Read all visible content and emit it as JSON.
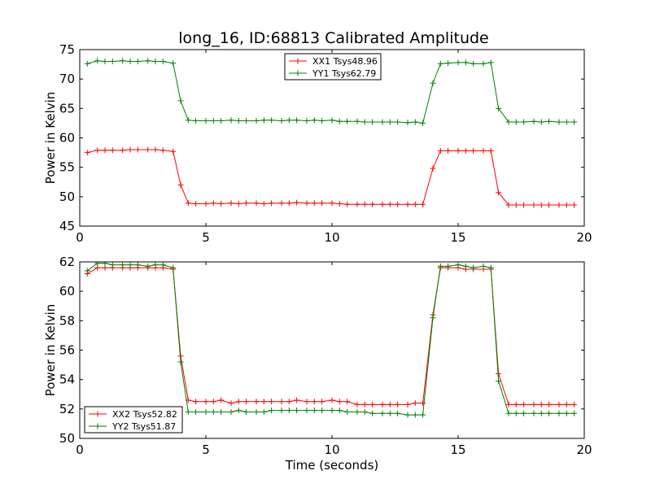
{
  "figure": {
    "title": "long_16, ID:68813 Calibrated Amplitude"
  },
  "chart_data": [
    {
      "type": "line",
      "title": "long_16, ID:68813 Calibrated Amplitude",
      "xlabel": "",
      "ylabel": "Power in Kelvin",
      "xlim": [
        0,
        20
      ],
      "ylim": [
        45,
        75
      ],
      "xticks": [
        0,
        5,
        10,
        15,
        20
      ],
      "yticks": [
        45,
        50,
        55,
        60,
        65,
        70,
        75
      ],
      "grid": false,
      "legend_position": "upper-center",
      "x": [
        0.3,
        0.7,
        1.0,
        1.3,
        1.7,
        2.0,
        2.3,
        2.7,
        3.0,
        3.3,
        3.7,
        4.0,
        4.3,
        4.6,
        5.0,
        5.3,
        5.6,
        6.0,
        6.3,
        6.6,
        7.0,
        7.3,
        7.6,
        8.0,
        8.3,
        8.6,
        9.0,
        9.3,
        9.6,
        10.0,
        10.3,
        10.6,
        11.0,
        11.3,
        11.6,
        12.0,
        12.3,
        12.6,
        13.0,
        13.3,
        13.6,
        14.0,
        14.3,
        14.6,
        15.0,
        15.3,
        15.6,
        16.0,
        16.3,
        16.6,
        17.0,
        17.3,
        17.6,
        18.0,
        18.3,
        18.6,
        19.0,
        19.3,
        19.6
      ],
      "series": [
        {
          "name": "XX1 Tsys48.96",
          "color": "#ff0000",
          "values": [
            57.5,
            57.9,
            57.9,
            57.9,
            57.9,
            58.0,
            58.0,
            58.0,
            58.0,
            57.9,
            57.7,
            52.0,
            48.9,
            48.8,
            48.8,
            48.9,
            48.8,
            48.9,
            48.8,
            48.9,
            48.9,
            48.8,
            48.9,
            48.9,
            48.9,
            49.0,
            48.9,
            48.9,
            48.9,
            48.9,
            48.8,
            48.7,
            48.7,
            48.7,
            48.7,
            48.7,
            48.7,
            48.7,
            48.7,
            48.7,
            48.7,
            54.8,
            57.8,
            57.8,
            57.8,
            57.8,
            57.8,
            57.8,
            57.8,
            50.7,
            48.6,
            48.6,
            48.6,
            48.6,
            48.6,
            48.6,
            48.6,
            48.6,
            48.6
          ]
        },
        {
          "name": "YY1 Tsys62.79",
          "color": "#008000",
          "values": [
            72.6,
            73.1,
            73.0,
            73.0,
            73.1,
            73.0,
            73.0,
            73.1,
            73.0,
            73.0,
            72.7,
            66.3,
            63.0,
            62.9,
            62.9,
            62.9,
            62.9,
            63.0,
            62.9,
            62.9,
            62.9,
            63.0,
            63.0,
            62.9,
            63.0,
            63.0,
            62.9,
            63.0,
            62.9,
            63.0,
            62.8,
            62.8,
            62.8,
            62.7,
            62.7,
            62.7,
            62.7,
            62.7,
            62.6,
            62.7,
            62.5,
            69.3,
            72.6,
            72.7,
            72.8,
            72.8,
            72.6,
            72.6,
            72.8,
            65.0,
            62.7,
            62.7,
            62.7,
            62.8,
            62.7,
            62.8,
            62.7,
            62.7,
            62.7
          ]
        }
      ]
    },
    {
      "type": "line",
      "title": "",
      "xlabel": "Time (seconds)",
      "ylabel": "Power in Kelvin",
      "xlim": [
        0,
        20
      ],
      "ylim": [
        50,
        62
      ],
      "xticks": [
        0,
        5,
        10,
        15,
        20
      ],
      "yticks": [
        50,
        52,
        54,
        56,
        58,
        60,
        62
      ],
      "grid": false,
      "legend_position": "lower-left",
      "x": [
        0.3,
        0.7,
        1.0,
        1.3,
        1.7,
        2.0,
        2.3,
        2.7,
        3.0,
        3.3,
        3.7,
        4.0,
        4.3,
        4.6,
        5.0,
        5.3,
        5.6,
        6.0,
        6.3,
        6.6,
        7.0,
        7.3,
        7.6,
        8.0,
        8.3,
        8.6,
        9.0,
        9.3,
        9.6,
        10.0,
        10.3,
        10.6,
        11.0,
        11.3,
        11.6,
        12.0,
        12.3,
        12.6,
        13.0,
        13.3,
        13.6,
        14.0,
        14.3,
        14.6,
        15.0,
        15.3,
        15.6,
        16.0,
        16.3,
        16.6,
        17.0,
        17.3,
        17.6,
        18.0,
        18.3,
        18.6,
        19.0,
        19.3,
        19.6
      ],
      "series": [
        {
          "name": "XX2 Tsys52.82",
          "color": "#ff0000",
          "values": [
            61.2,
            61.6,
            61.6,
            61.6,
            61.6,
            61.6,
            61.6,
            61.6,
            61.6,
            61.6,
            61.5,
            55.6,
            52.6,
            52.5,
            52.5,
            52.5,
            52.6,
            52.4,
            52.5,
            52.5,
            52.5,
            52.5,
            52.5,
            52.5,
            52.5,
            52.6,
            52.5,
            52.5,
            52.5,
            52.6,
            52.5,
            52.5,
            52.3,
            52.3,
            52.3,
            52.3,
            52.3,
            52.3,
            52.3,
            52.4,
            52.4,
            58.4,
            61.6,
            61.6,
            61.6,
            61.5,
            61.5,
            61.5,
            61.5,
            54.4,
            52.3,
            52.3,
            52.3,
            52.3,
            52.3,
            52.3,
            52.3,
            52.3,
            52.3
          ]
        },
        {
          "name": "YY2 Tsys51.87",
          "color": "#008000",
          "values": [
            61.4,
            61.9,
            61.9,
            61.8,
            61.8,
            61.8,
            61.8,
            61.7,
            61.8,
            61.8,
            61.6,
            55.2,
            51.8,
            51.8,
            51.8,
            51.8,
            51.8,
            51.8,
            51.9,
            51.8,
            51.8,
            51.8,
            51.9,
            51.9,
            51.9,
            51.9,
            51.9,
            51.9,
            51.9,
            51.9,
            51.9,
            51.8,
            51.8,
            51.8,
            51.7,
            51.7,
            51.7,
            51.7,
            51.6,
            51.6,
            51.6,
            58.2,
            61.7,
            61.7,
            61.8,
            61.7,
            61.6,
            61.7,
            61.6,
            53.9,
            51.7,
            51.7,
            51.7,
            51.7,
            51.7,
            51.7,
            51.7,
            51.7,
            51.7
          ]
        }
      ]
    }
  ]
}
